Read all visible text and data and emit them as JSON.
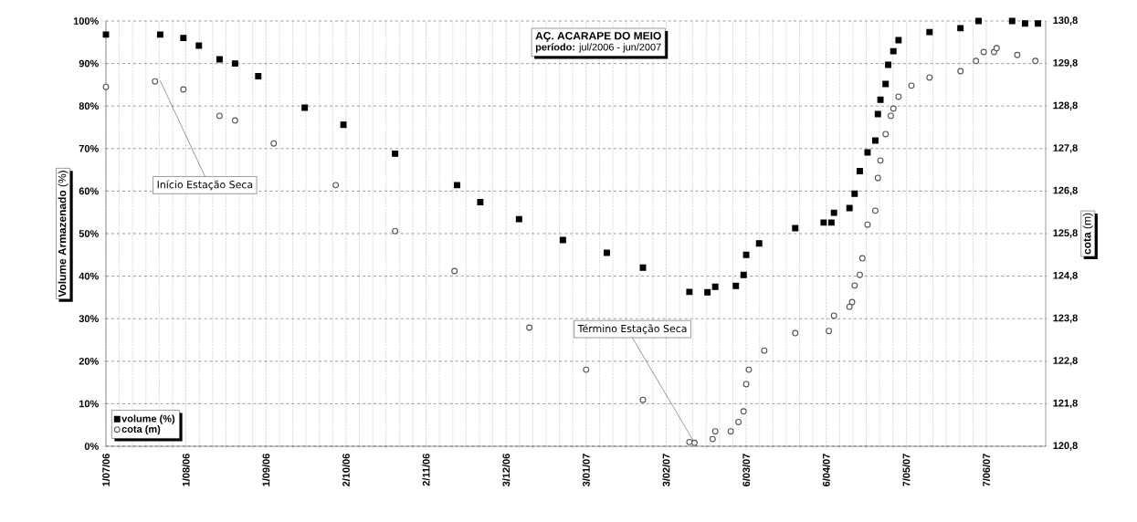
{
  "chart_data": {
    "type": "scatter",
    "title": "AÇ. ACARAPE DO MEIO",
    "subtitle": "**período:** jul/2006 - jun/2007",
    "ylabel": "**Volume Armazenado** (%)",
    "y2label": "**cota** (m)",
    "xlim": [
      "2006-07-01",
      "2007-06-30"
    ],
    "xticks": [
      {
        "value": "2006-07-01",
        "label": "1/07/06"
      },
      {
        "value": "2006-08-01",
        "label": "1/08/06"
      },
      {
        "value": "2006-09-01",
        "label": "1/09/06"
      },
      {
        "value": "2006-10-02",
        "label": "2/10/06"
      },
      {
        "value": "2006-11-02",
        "label": "2/11/06"
      },
      {
        "value": "2006-12-03",
        "label": "3/12/06"
      },
      {
        "value": "2007-01-03",
        "label": "3/01/07"
      },
      {
        "value": "2007-02-03",
        "label": "3/02/07"
      },
      {
        "value": "2007-03-06",
        "label": "6/03/07"
      },
      {
        "value": "2007-04-06",
        "label": "6/04/07"
      },
      {
        "value": "2007-05-07",
        "label": "7/05/07"
      },
      {
        "value": "2007-06-07",
        "label": "7/06/07"
      }
    ],
    "ylim": [
      0,
      100
    ],
    "yticks": [
      {
        "value": 0,
        "label": "0%"
      },
      {
        "value": 10,
        "label": "10%"
      },
      {
        "value": 20,
        "label": "20%"
      },
      {
        "value": 30,
        "label": "30%"
      },
      {
        "value": 40,
        "label": "40%"
      },
      {
        "value": 50,
        "label": "50%"
      },
      {
        "value": 60,
        "label": "60%"
      },
      {
        "value": 70,
        "label": "70%"
      },
      {
        "value": 80,
        "label": "80%"
      },
      {
        "value": 90,
        "label": "90%"
      },
      {
        "value": 100,
        "label": "100%"
      }
    ],
    "y2lim": [
      120.8,
      130.8
    ],
    "y2ticks": [
      {
        "value": 120.8,
        "label": "120,8"
      },
      {
        "value": 121.8,
        "label": "121,8"
      },
      {
        "value": 122.8,
        "label": "122,8"
      },
      {
        "value": 123.8,
        "label": "123,8"
      },
      {
        "value": 124.8,
        "label": "124,8"
      },
      {
        "value": 125.8,
        "label": "125,8"
      },
      {
        "value": 126.8,
        "label": "126,8"
      },
      {
        "value": 127.8,
        "label": "127,8"
      },
      {
        "value": 128.8,
        "label": "128,8"
      },
      {
        "value": 129.8,
        "label": "129,8"
      },
      {
        "value": 130.8,
        "label": "130,8"
      }
    ],
    "grid": true,
    "legend": "bottom left",
    "series": [
      {
        "name": "volume (%)",
        "color": "#000000",
        "marker": "square",
        "x": [
          "2006-07-01",
          "2006-07-22",
          "2006-07-31",
          "2006-08-06",
          "2006-08-14",
          "2006-08-20",
          "2006-08-29",
          "2006-09-16",
          "2006-10-01",
          "2006-10-21",
          "2006-11-14",
          "2006-11-23",
          "2006-12-08",
          "2006-12-25",
          "2007-01-11",
          "2007-01-25",
          "2007-02-12",
          "2007-02-19",
          "2007-02-22",
          "2007-03-02",
          "2007-03-05",
          "2007-03-06",
          "2007-03-11",
          "2007-03-25",
          "2007-04-05",
          "2007-04-08",
          "2007-04-09",
          "2007-04-15",
          "2007-04-17",
          "2007-04-19",
          "2007-04-22",
          "2007-04-25",
          "2007-04-26",
          "2007-04-27",
          "2007-04-29",
          "2007-04-30",
          "2007-05-02",
          "2007-05-04",
          "2007-05-16",
          "2007-05-28",
          "2007-06-04",
          "2007-06-17",
          "2007-06-22",
          "2007-06-27"
        ],
        "values": [
          96.8,
          96.8,
          96,
          94.2,
          91,
          90,
          87,
          79.6,
          75.6,
          68.8,
          61.4,
          57.4,
          53.4,
          48.5,
          45.5,
          42,
          36.3,
          36.2,
          37.5,
          37.7,
          40.3,
          45,
          47.7,
          51.3,
          52.6,
          52.6,
          54.9,
          56,
          59.4,
          64.7,
          69.1,
          71.9,
          78.1,
          81.5,
          85.2,
          89.7,
          92.9,
          95.5,
          97.4,
          98.3,
          100,
          100,
          99.4,
          99.4
        ]
      },
      {
        "name": "cota (m)",
        "color": "#555555",
        "marker": "circle",
        "axis": "y2",
        "x": [
          "2006-07-01",
          "2006-07-20",
          "2006-07-31",
          "2006-08-14",
          "2006-08-20",
          "2006-09-04",
          "2006-09-28",
          "2006-10-21",
          "2006-11-13",
          "2006-12-12",
          "2007-01-03",
          "2007-01-25",
          "2007-02-12",
          "2007-02-14",
          "2007-02-21",
          "2007-02-22",
          "2007-02-28",
          "2007-03-03",
          "2007-03-05",
          "2007-03-06",
          "2007-03-07",
          "2007-03-13",
          "2007-03-25",
          "2007-04-07",
          "2007-04-09",
          "2007-04-15",
          "2007-04-16",
          "2007-04-17",
          "2007-04-19",
          "2007-04-20",
          "2007-04-22",
          "2007-04-25",
          "2007-04-26",
          "2007-04-27",
          "2007-04-29",
          "2007-05-01",
          "2007-05-02",
          "2007-05-04",
          "2007-05-09",
          "2007-05-16",
          "2007-05-28",
          "2007-06-03",
          "2007-06-06",
          "2007-06-10",
          "2007-06-11",
          "2007-06-19",
          "2007-06-26"
        ],
        "values": [
          129.25,
          129.38,
          129.19,
          128.57,
          128.46,
          127.92,
          126.94,
          125.86,
          124.92,
          123.59,
          122.6,
          121.89,
          120.9,
          120.88,
          120.97,
          121.15,
          121.15,
          121.37,
          121.62,
          122.26,
          122.6,
          123.05,
          123.46,
          123.51,
          123.87,
          124.08,
          124.19,
          124.58,
          124.83,
          125.22,
          126.01,
          126.34,
          127.11,
          127.52,
          128.14,
          128.57,
          128.74,
          129.02,
          129.28,
          129.47,
          129.62,
          129.86,
          130.07,
          130.07,
          130.16,
          130.0,
          129.86
        ]
      }
    ],
    "annotations": [
      {
        "text": "Início Estação Seca",
        "x": "2006-07-22",
        "y": 86
      },
      {
        "text": "Término Estação Seca",
        "x": "2007-02-14",
        "y": 0.8
      }
    ]
  }
}
